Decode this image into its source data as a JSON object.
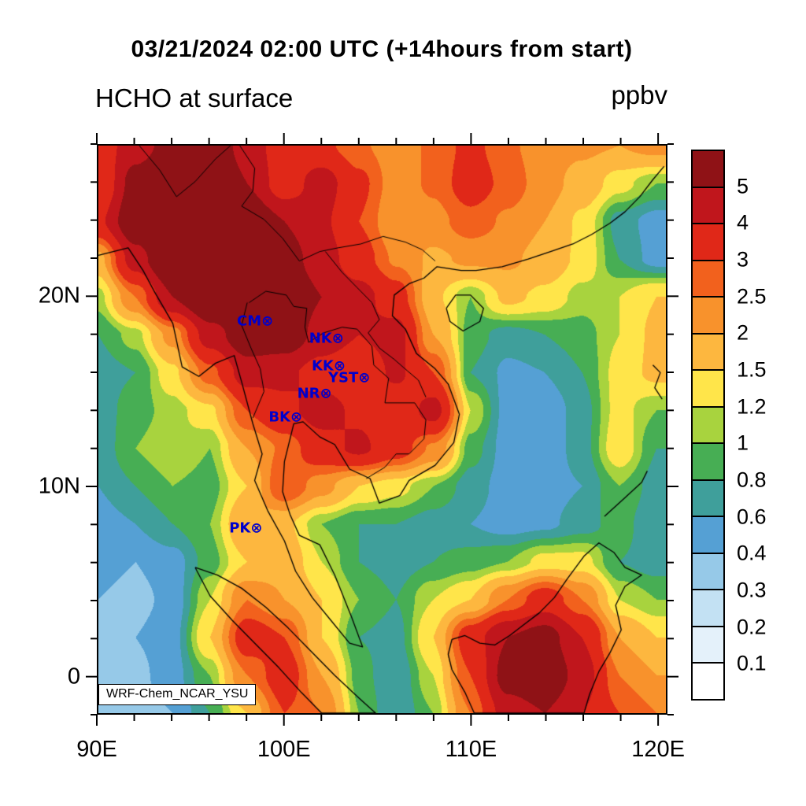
{
  "header": {
    "title": "03/21/2024 02:00 UTC (+14hours from start)",
    "subtitle_left": "HCHO at surface",
    "subtitle_right": "ppbv"
  },
  "axes": {
    "x_ticks": [
      {
        "label": "90E",
        "lon": 90
      },
      {
        "label": "100E",
        "lon": 100
      },
      {
        "label": "110E",
        "lon": 110
      },
      {
        "label": "120E",
        "lon": 120
      }
    ],
    "y_ticks": [
      {
        "label": "20N",
        "lat": 20
      },
      {
        "label": "10N",
        "lat": 10
      },
      {
        "label": "0",
        "lat": 0
      }
    ],
    "minor_tick_step_deg": 2
  },
  "map": {
    "annotation": "WRF-Chem_NCAR_YSU",
    "station_symbol": "⊗",
    "station_color": "#0000cc"
  },
  "colorbar": {
    "tick_labels": [
      "0.1",
      "0.2",
      "0.3",
      "0.4",
      "0.6",
      "0.8",
      "1",
      "1.2",
      "1.5",
      "2",
      "2.5",
      "3",
      "4",
      "5"
    ]
  },
  "chart_data": {
    "type": "heatmap",
    "title": "HCHO at surface",
    "units": "ppbv",
    "timestamp_title": "03/21/2024 02:00 UTC (+14hours from start)",
    "model_label": "WRF-Chem_NCAR_YSU",
    "extent": {
      "lon_min": 90,
      "lon_max": 120.5,
      "lat_min": -2,
      "lat_max": 28
    },
    "levels": [
      0.1,
      0.2,
      0.3,
      0.4,
      0.6,
      0.8,
      1,
      1.2,
      1.5,
      2,
      2.5,
      3,
      4,
      5
    ],
    "colors": [
      "#ffffff",
      "#e4f1fa",
      "#c3e1f3",
      "#96c9e8",
      "#55a0d4",
      "#3f9f9b",
      "#47ae54",
      "#a8d33e",
      "#ffe54a",
      "#fdb73f",
      "#f8922c",
      "#f2611d",
      "#e02818",
      "#c0161c",
      "#8f1216"
    ],
    "grid": {
      "lons": [
        90,
        92,
        94,
        96,
        98,
        100,
        102,
        104,
        106,
        108,
        110,
        112,
        114,
        116,
        118,
        120
      ],
      "lats": [
        28,
        26,
        24,
        22,
        20,
        18,
        16,
        14,
        12,
        10,
        8,
        6,
        4,
        2,
        0,
        -2
      ],
      "values": [
        [
          3.5,
          4.5,
          5.5,
          6.0,
          4.5,
          3.5,
          3.2,
          2.6,
          2.2,
          2.6,
          3.2,
          2.6,
          2.2,
          2.1,
          2.0,
          2.2
        ],
        [
          3.0,
          5.5,
          6.5,
          6.5,
          5.0,
          3.4,
          4.5,
          3.2,
          2.2,
          2.6,
          3.4,
          2.8,
          2.2,
          1.8,
          1.3,
          1.0
        ],
        [
          3.8,
          6.0,
          7.0,
          7.0,
          6.0,
          5.0,
          4.2,
          3.0,
          2.0,
          2.3,
          2.8,
          2.4,
          2.0,
          1.4,
          0.7,
          0.5
        ],
        [
          1.8,
          4.5,
          6.5,
          7.0,
          6.5,
          5.5,
          4.5,
          3.4,
          2.4,
          1.9,
          2.1,
          2.1,
          1.8,
          1.4,
          0.8,
          0.5
        ],
        [
          1.1,
          2.5,
          5.0,
          6.5,
          6.5,
          6.0,
          5.0,
          4.4,
          3.4,
          1.6,
          1.0,
          1.6,
          1.4,
          1.1,
          1.2,
          1.5
        ],
        [
          0.8,
          1.1,
          2.2,
          4.5,
          5.8,
          5.8,
          4.6,
          4.0,
          4.4,
          2.0,
          0.9,
          0.7,
          0.8,
          0.9,
          1.2,
          1.6
        ],
        [
          0.7,
          0.8,
          1.4,
          2.8,
          4.5,
          4.2,
          3.6,
          3.2,
          4.2,
          3.0,
          0.8,
          0.55,
          0.6,
          0.8,
          1.3,
          1.6
        ],
        [
          0.7,
          0.9,
          1.1,
          1.4,
          3.0,
          3.8,
          4.4,
          3.8,
          3.2,
          4.4,
          1.2,
          0.5,
          0.45,
          0.7,
          1.3,
          1.0
        ],
        [
          0.65,
          1.0,
          1.2,
          1.0,
          2.0,
          2.6,
          3.6,
          4.2,
          3.4,
          2.4,
          0.9,
          0.5,
          0.45,
          0.7,
          1.4,
          0.8
        ],
        [
          0.6,
          0.8,
          1.0,
          0.9,
          1.5,
          3.0,
          2.2,
          1.5,
          1.3,
          1.0,
          0.7,
          0.5,
          0.5,
          0.6,
          1.0,
          0.7
        ],
        [
          0.5,
          0.6,
          0.8,
          1.0,
          2.0,
          1.6,
          1.0,
          0.8,
          0.8,
          0.7,
          0.6,
          0.5,
          0.55,
          0.7,
          0.9,
          0.6
        ],
        [
          0.45,
          0.4,
          0.5,
          0.9,
          1.5,
          1.8,
          1.2,
          0.8,
          0.7,
          0.8,
          0.9,
          1.0,
          1.3,
          1.3,
          0.8,
          0.7
        ],
        [
          0.4,
          0.35,
          0.45,
          1.2,
          2.5,
          2.0,
          1.5,
          1.0,
          0.8,
          1.2,
          1.5,
          2.5,
          3.5,
          2.5,
          1.2,
          1.0
        ],
        [
          0.35,
          0.4,
          0.5,
          1.5,
          3.5,
          3.0,
          1.5,
          0.8,
          0.7,
          1.5,
          3.5,
          5.0,
          5.5,
          4.0,
          2.0,
          1.5
        ],
        [
          0.3,
          0.35,
          0.5,
          1.0,
          2.5,
          3.5,
          2.0,
          0.9,
          0.6,
          1.2,
          3.0,
          5.5,
          6.0,
          4.5,
          2.5,
          2.0
        ],
        [
          0.3,
          0.3,
          0.4,
          0.8,
          1.5,
          3.0,
          2.5,
          1.0,
          0.6,
          1.0,
          2.5,
          4.5,
          5.0,
          4.0,
          3.0,
          2.5
        ]
      ]
    },
    "stations": [
      {
        "id": "CM",
        "lon": 98.97,
        "lat": 18.79
      },
      {
        "id": "NK",
        "lon": 102.74,
        "lat": 17.87
      },
      {
        "id": "KK",
        "lon": 102.83,
        "lat": 16.43
      },
      {
        "id": "YST",
        "lon": 104.15,
        "lat": 15.79
      },
      {
        "id": "NR",
        "lon": 102.1,
        "lat": 14.97
      },
      {
        "id": "BK",
        "lon": 100.52,
        "lat": 13.73
      },
      {
        "id": "PK",
        "lon": 98.39,
        "lat": 7.88
      }
    ],
    "coastlines": [
      [
        [
          90,
          22.2
        ],
        [
          91.6,
          22.6
        ],
        [
          92.4,
          21.4
        ],
        [
          93.0,
          20.3
        ],
        [
          94.0,
          18.6
        ],
        [
          94.5,
          16.3
        ],
        [
          95.4,
          15.8
        ],
        [
          96.3,
          16.5
        ],
        [
          97.3,
          16.9
        ],
        [
          97.7,
          15.5
        ],
        [
          98.3,
          13.3
        ],
        [
          98.8,
          11.7
        ],
        [
          98.4,
          10.3
        ],
        [
          99.1,
          8.7
        ],
        [
          100.0,
          7.1
        ],
        [
          100.6,
          5.5
        ],
        [
          101.5,
          4.1
        ],
        [
          102.5,
          2.9
        ],
        [
          103.5,
          1.7
        ],
        [
          104.2,
          1.5
        ],
        [
          103.6,
          3.1
        ],
        [
          102.7,
          5.3
        ],
        [
          101.9,
          6.9
        ],
        [
          100.8,
          7.4
        ],
        [
          100.3,
          8.5
        ],
        [
          99.9,
          9.7
        ],
        [
          100.0,
          11.3
        ],
        [
          100.5,
          13.3
        ],
        [
          101.0,
          13.4
        ],
        [
          101.9,
          12.6
        ],
        [
          102.7,
          12.2
        ],
        [
          103.5,
          10.9
        ],
        [
          104.6,
          10.4
        ],
        [
          105.1,
          9.1
        ],
        [
          106.2,
          9.5
        ],
        [
          106.7,
          10.3
        ],
        [
          108.1,
          11.1
        ],
        [
          109.1,
          12.3
        ],
        [
          109.4,
          13.8
        ],
        [
          108.8,
          15.4
        ],
        [
          108.1,
          16.2
        ],
        [
          107.1,
          17.0
        ],
        [
          106.5,
          18.3
        ],
        [
          105.8,
          19.0
        ],
        [
          105.9,
          20.1
        ],
        [
          106.7,
          20.7
        ],
        [
          107.5,
          21.0
        ],
        [
          108.2,
          21.6
        ],
        [
          109.5,
          21.4
        ],
        [
          110.3,
          21.4
        ],
        [
          111.7,
          21.6
        ],
        [
          113.1,
          22.0
        ],
        [
          114.3,
          22.4
        ],
        [
          115.5,
          22.8
        ],
        [
          116.5,
          23.3
        ],
        [
          117.5,
          23.9
        ],
        [
          118.3,
          24.5
        ],
        [
          119.1,
          25.3
        ],
        [
          119.8,
          26.2
        ],
        [
          120.4,
          26.9
        ]
      ],
      [
        [
          108.7,
          19.4
        ],
        [
          109.2,
          20.1
        ],
        [
          110.0,
          20.1
        ],
        [
          110.7,
          19.4
        ],
        [
          110.5,
          18.7
        ],
        [
          109.6,
          18.2
        ],
        [
          108.9,
          18.7
        ],
        [
          108.7,
          19.4
        ]
      ],
      [
        [
          95.2,
          5.7
        ],
        [
          96.4,
          5.3
        ],
        [
          97.7,
          4.6
        ],
        [
          99.0,
          3.6
        ],
        [
          100.2,
          2.5
        ],
        [
          101.4,
          1.3
        ],
        [
          102.7,
          0.0
        ],
        [
          104.0,
          -1.2
        ],
        [
          104.9,
          -2.0
        ],
        [
          102.0,
          -2.0
        ],
        [
          100.9,
          -0.9
        ],
        [
          99.7,
          0.4
        ],
        [
          98.5,
          1.6
        ],
        [
          97.2,
          2.9
        ],
        [
          96.0,
          4.2
        ],
        [
          95.2,
          5.7
        ]
      ],
      [
        [
          109.0,
          1.9
        ],
        [
          109.7,
          2.1
        ],
        [
          110.5,
          1.7
        ],
        [
          111.3,
          1.6
        ],
        [
          112.1,
          2.1
        ],
        [
          112.9,
          2.7
        ],
        [
          113.7,
          3.3
        ],
        [
          114.5,
          4.1
        ],
        [
          115.2,
          5.1
        ],
        [
          116.1,
          6.3
        ],
        [
          116.9,
          7.0
        ],
        [
          117.7,
          6.5
        ],
        [
          118.3,
          5.7
        ],
        [
          119.2,
          5.3
        ],
        [
          118.3,
          4.7
        ],
        [
          117.8,
          3.7
        ],
        [
          118.1,
          2.4
        ],
        [
          117.5,
          1.2
        ],
        [
          116.9,
          0.2
        ],
        [
          116.4,
          -1.0
        ],
        [
          116.1,
          -2.0
        ],
        [
          110.2,
          -2.0
        ],
        [
          109.7,
          -0.9
        ],
        [
          109.0,
          0.3
        ],
        [
          108.8,
          1.1
        ],
        [
          109.0,
          1.9
        ]
      ],
      [
        [
          117.2,
          8.4
        ],
        [
          118.2,
          9.3
        ],
        [
          119.2,
          10.2
        ],
        [
          119.5,
          10.8
        ]
      ],
      [
        [
          119.8,
          16.4
        ],
        [
          120.2,
          16.0
        ],
        [
          119.9,
          15.2
        ],
        [
          120.3,
          14.6
        ]
      ]
    ],
    "borders": [
      [
        [
          97.6,
          28.0
        ],
        [
          98.4,
          26.8
        ],
        [
          98.3,
          25.6
        ],
        [
          97.7,
          24.8
        ],
        [
          98.9,
          24.1
        ],
        [
          99.9,
          23.1
        ],
        [
          100.8,
          21.9
        ],
        [
          101.9,
          22.4
        ],
        [
          102.9,
          22.6
        ],
        [
          104.1,
          22.8
        ],
        [
          105.3,
          23.2
        ],
        [
          106.5,
          22.9
        ],
        [
          107.4,
          22.5
        ],
        [
          108.1,
          21.9
        ]
      ],
      [
        [
          98.1,
          19.7
        ],
        [
          99.0,
          20.3
        ],
        [
          100.1,
          20.1
        ],
        [
          100.5,
          19.5
        ],
        [
          101.2,
          19.4
        ],
        [
          101.1,
          18.4
        ],
        [
          101.3,
          17.6
        ],
        [
          102.1,
          18.1
        ],
        [
          103.1,
          18.4
        ],
        [
          103.9,
          18.3
        ],
        [
          104.7,
          17.4
        ],
        [
          104.8,
          16.4
        ],
        [
          105.6,
          15.7
        ],
        [
          105.4,
          14.4
        ],
        [
          106.2,
          14.4
        ],
        [
          107.0,
          14.4
        ],
        [
          107.6,
          13.5
        ],
        [
          107.5,
          12.5
        ],
        [
          106.7,
          11.7
        ],
        [
          106.0,
          11.7
        ],
        [
          105.4,
          11.0
        ],
        [
          104.4,
          10.4
        ]
      ],
      [
        [
          102.2,
          22.4
        ],
        [
          103.1,
          21.3
        ],
        [
          103.9,
          20.5
        ],
        [
          104.7,
          19.7
        ],
        [
          105.1,
          18.8
        ],
        [
          104.5,
          18.1
        ],
        [
          105.1,
          17.3
        ],
        [
          105.9,
          16.7
        ],
        [
          106.6,
          16.1
        ],
        [
          107.2,
          15.6
        ],
        [
          107.6,
          14.7
        ]
      ],
      [
        [
          98.0,
          19.7
        ],
        [
          97.7,
          18.5
        ],
        [
          98.2,
          17.3
        ],
        [
          98.7,
          16.2
        ],
        [
          98.9,
          15.0
        ],
        [
          98.3,
          13.6
        ]
      ],
      [
        [
          92.2,
          28.0
        ],
        [
          93.3,
          26.7
        ],
        [
          94.2,
          25.3
        ],
        [
          95.2,
          26.1
        ],
        [
          96.3,
          27.3
        ],
        [
          97.1,
          28.0
        ]
      ]
    ]
  }
}
